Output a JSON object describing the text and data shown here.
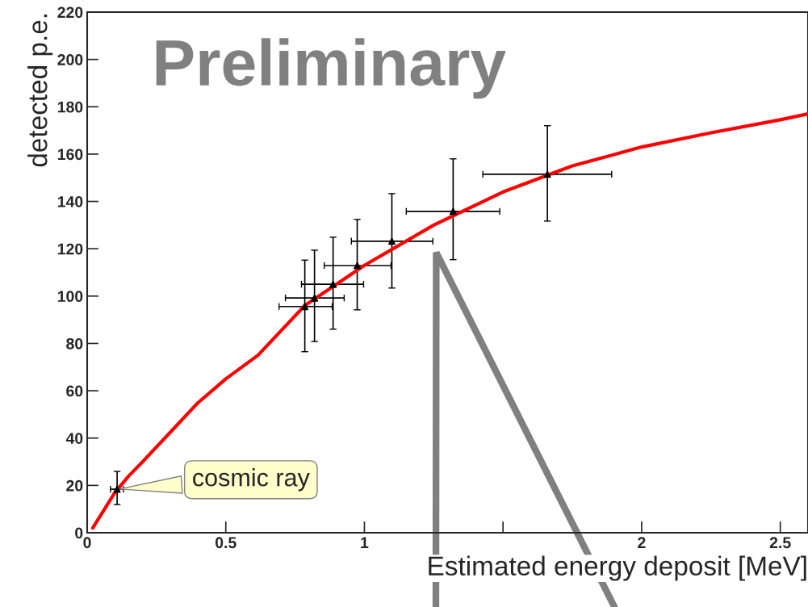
{
  "chart_data": {
    "type": "scatter",
    "xlabel": "Estimated energy deposit [MeV]",
    "ylabel": "detected p.e.",
    "xlim": [
      0,
      2.6
    ],
    "ylim": [
      0,
      220
    ],
    "xticks": [
      0,
      0.5,
      1,
      {
        "value": 1.5,
        "label": null
      },
      2,
      2.5
    ],
    "yticks": [
      0,
      20,
      40,
      60,
      80,
      100,
      120,
      140,
      160,
      180,
      200,
      220
    ],
    "grid": false,
    "series": [
      {
        "type": "line",
        "color": "#ff0000",
        "line_style": "solid",
        "marker": "none",
        "x": [
          0.02,
          0.1,
          0.15,
          0.2,
          0.28,
          0.4,
          0.5,
          0.616,
          0.785,
          1.0,
          1.25,
          1.5,
          1.75,
          2.0,
          2.25,
          2.5,
          2.6
        ],
        "values": [
          2,
          17,
          24,
          30,
          40,
          55,
          65,
          75,
          96,
          113,
          130,
          144,
          155,
          163,
          169,
          174.5,
          177
        ]
      },
      {
        "color": "#000000",
        "marker": "triangle",
        "x": [
          0.108,
          0.785,
          0.82,
          0.887,
          0.974,
          1.099,
          1.32,
          1.66
        ],
        "values": [
          18.4,
          95.6,
          99.2,
          105,
          112.9,
          123.2,
          135.8,
          151.5
        ],
        "errors": [
          [
            11.9,
            25.9
          ],
          [
            76.5,
            115.2
          ],
          [
            80.8,
            119.4
          ],
          [
            86,
            124.9
          ],
          [
            94.2,
            132.4
          ],
          [
            103.4,
            143.3
          ],
          [
            115.4,
            158
          ],
          [
            131.7,
            172
          ]
        ],
        "xerrors": [
          [
            0.084,
            0.131
          ],
          [
            0.692,
            0.884
          ],
          [
            0.715,
            0.927
          ],
          [
            0.773,
            0.997
          ],
          [
            0.855,
            1.096
          ],
          [
            0.953,
            1.247
          ],
          [
            1.151,
            1.488
          ],
          [
            1.427,
            1.892
          ]
        ]
      }
    ],
    "annotations": [
      "Preliminary",
      {
        "text": "cosmic ray",
        "x": 0.108,
        "y": 18.4
      }
    ]
  }
}
